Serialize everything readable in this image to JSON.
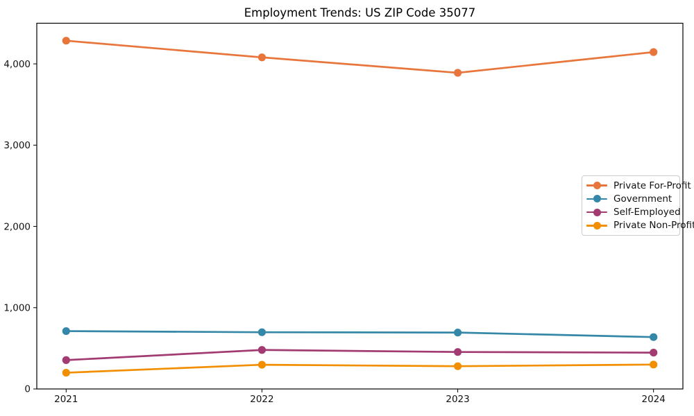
{
  "chart_data": {
    "type": "line",
    "title": "Employment Trends: US ZIP Code 35077",
    "xlabel": "",
    "ylabel": "",
    "x": [
      2021,
      2022,
      2023,
      2024
    ],
    "x_tick_labels": [
      "2021",
      "2022",
      "2023",
      "2024"
    ],
    "y_ticks": [
      0,
      1000,
      2000,
      3000,
      4000
    ],
    "y_tick_labels": [
      "0",
      "1,000",
      "2,000",
      "3,000",
      "4,000"
    ],
    "ylim": [
      0,
      4500
    ],
    "grid": false,
    "legend_position": "center-right",
    "series": [
      {
        "name": "Private For-Profit",
        "color": "#E8763C",
        "values": [
          4285,
          4080,
          3890,
          4145
        ]
      },
      {
        "name": "Government",
        "color": "#3587A8",
        "values": [
          712,
          698,
          694,
          638
        ]
      },
      {
        "name": "Self-Employed",
        "color": "#A23B72",
        "values": [
          355,
          480,
          455,
          447
        ]
      },
      {
        "name": "Private Non-Profit",
        "color": "#F18F01",
        "values": [
          200,
          298,
          280,
          300
        ]
      }
    ]
  }
}
